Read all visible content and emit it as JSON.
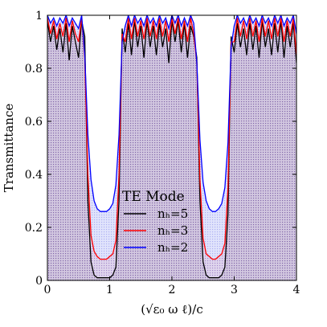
{
  "chart_data": {
    "type": "line",
    "xlabel": "(√ε₀ ω ℓ)/c",
    "ylabel": "Transmittance",
    "xlim": [
      0,
      4
    ],
    "ylim": [
      0,
      1
    ],
    "x_ticks": [
      0,
      1,
      2,
      3,
      4
    ],
    "y_ticks": [
      0,
      0.2,
      0.4,
      0.6,
      0.8,
      1
    ],
    "x_tick_labels": [
      "0",
      "1",
      "2",
      "3",
      "4"
    ],
    "y_tick_labels": [
      "0",
      "0.2",
      "0.4",
      "0.6",
      "0.8",
      "1"
    ],
    "legend_title": "TE Mode",
    "legend_position": "center-left",
    "fill_style": "shaded region under each curve",
    "series": [
      {
        "name": "nₕ=5",
        "color": "#000000",
        "points": [
          [
            0.0,
            0.98
          ],
          [
            0.05,
            0.9
          ],
          [
            0.1,
            0.96
          ],
          [
            0.15,
            0.87
          ],
          [
            0.2,
            0.95
          ],
          [
            0.25,
            0.86
          ],
          [
            0.3,
            0.97
          ],
          [
            0.35,
            0.83
          ],
          [
            0.4,
            0.96
          ],
          [
            0.45,
            0.9
          ],
          [
            0.5,
            0.84
          ],
          [
            0.55,
            0.98
          ],
          [
            0.6,
            0.92
          ],
          [
            0.65,
            0.3
          ],
          [
            0.7,
            0.07
          ],
          [
            0.75,
            0.02
          ],
          [
            0.8,
            0.01
          ],
          [
            0.85,
            0.01
          ],
          [
            0.9,
            0.01
          ],
          [
            0.95,
            0.01
          ],
          [
            1.0,
            0.01
          ],
          [
            1.05,
            0.02
          ],
          [
            1.1,
            0.05
          ],
          [
            1.15,
            0.3
          ],
          [
            1.2,
            0.95
          ],
          [
            1.25,
            0.86
          ],
          [
            1.3,
            0.97
          ],
          [
            1.35,
            0.85
          ],
          [
            1.4,
            0.98
          ],
          [
            1.45,
            0.88
          ],
          [
            1.5,
            0.96
          ],
          [
            1.55,
            0.84
          ],
          [
            1.6,
            0.98
          ],
          [
            1.65,
            0.88
          ],
          [
            1.7,
            0.96
          ],
          [
            1.75,
            0.85
          ],
          [
            1.8,
            0.97
          ],
          [
            1.85,
            0.88
          ],
          [
            1.9,
            0.95
          ],
          [
            1.95,
            0.82
          ],
          [
            2.0,
            0.98
          ],
          [
            2.05,
            0.9
          ],
          [
            2.1,
            0.98
          ],
          [
            2.15,
            0.86
          ],
          [
            2.2,
            0.97
          ],
          [
            2.25,
            0.84
          ],
          [
            2.3,
            0.96
          ],
          [
            2.35,
            0.92
          ],
          [
            2.4,
            0.84
          ],
          [
            2.45,
            0.3
          ],
          [
            2.5,
            0.07
          ],
          [
            2.55,
            0.02
          ],
          [
            2.6,
            0.01
          ],
          [
            2.65,
            0.01
          ],
          [
            2.7,
            0.01
          ],
          [
            2.75,
            0.01
          ],
          [
            2.8,
            0.02
          ],
          [
            2.85,
            0.05
          ],
          [
            2.9,
            0.25
          ],
          [
            2.95,
            0.92
          ],
          [
            3.0,
            0.86
          ],
          [
            3.05,
            0.97
          ],
          [
            3.1,
            0.88
          ],
          [
            3.15,
            0.95
          ],
          [
            3.2,
            0.85
          ],
          [
            3.25,
            0.97
          ],
          [
            3.3,
            0.87
          ],
          [
            3.35,
            0.96
          ],
          [
            3.4,
            0.84
          ],
          [
            3.45,
            0.98
          ],
          [
            3.5,
            0.88
          ],
          [
            3.55,
            0.95
          ],
          [
            3.6,
            0.85
          ],
          [
            3.65,
            0.97
          ],
          [
            3.7,
            0.86
          ],
          [
            3.75,
            0.98
          ],
          [
            3.8,
            0.84
          ],
          [
            3.85,
            0.96
          ],
          [
            3.9,
            0.88
          ],
          [
            3.95,
            0.97
          ],
          [
            4.0,
            0.82
          ]
        ]
      },
      {
        "name": "nₕ=3",
        "color": "#ff0000",
        "points": [
          [
            0.0,
            0.99
          ],
          [
            0.05,
            0.93
          ],
          [
            0.1,
            0.98
          ],
          [
            0.15,
            0.91
          ],
          [
            0.2,
            0.97
          ],
          [
            0.25,
            0.92
          ],
          [
            0.3,
            0.99
          ],
          [
            0.35,
            0.9
          ],
          [
            0.4,
            0.98
          ],
          [
            0.45,
            0.93
          ],
          [
            0.5,
            0.9
          ],
          [
            0.55,
            0.99
          ],
          [
            0.6,
            0.84
          ],
          [
            0.65,
            0.4
          ],
          [
            0.7,
            0.17
          ],
          [
            0.75,
            0.11
          ],
          [
            0.8,
            0.09
          ],
          [
            0.85,
            0.08
          ],
          [
            0.9,
            0.08
          ],
          [
            0.95,
            0.08
          ],
          [
            1.0,
            0.09
          ],
          [
            1.05,
            0.1
          ],
          [
            1.1,
            0.15
          ],
          [
            1.15,
            0.4
          ],
          [
            1.2,
            0.93
          ],
          [
            1.25,
            0.9
          ],
          [
            1.3,
            0.99
          ],
          [
            1.35,
            0.91
          ],
          [
            1.4,
            0.99
          ],
          [
            1.45,
            0.92
          ],
          [
            1.5,
            0.98
          ],
          [
            1.55,
            0.91
          ],
          [
            1.6,
            0.99
          ],
          [
            1.65,
            0.92
          ],
          [
            1.7,
            0.98
          ],
          [
            1.75,
            0.91
          ],
          [
            1.8,
            0.99
          ],
          [
            1.85,
            0.92
          ],
          [
            1.9,
            0.98
          ],
          [
            1.95,
            0.9
          ],
          [
            2.0,
            0.99
          ],
          [
            2.05,
            0.93
          ],
          [
            2.1,
            0.99
          ],
          [
            2.15,
            0.91
          ],
          [
            2.2,
            0.98
          ],
          [
            2.25,
            0.9
          ],
          [
            2.3,
            0.99
          ],
          [
            2.35,
            0.93
          ],
          [
            2.4,
            0.82
          ],
          [
            2.45,
            0.38
          ],
          [
            2.5,
            0.16
          ],
          [
            2.55,
            0.1
          ],
          [
            2.6,
            0.09
          ],
          [
            2.65,
            0.08
          ],
          [
            2.7,
            0.08
          ],
          [
            2.75,
            0.09
          ],
          [
            2.8,
            0.1
          ],
          [
            2.85,
            0.14
          ],
          [
            2.9,
            0.35
          ],
          [
            2.95,
            0.9
          ],
          [
            3.0,
            0.9
          ],
          [
            3.05,
            0.99
          ],
          [
            3.1,
            0.92
          ],
          [
            3.15,
            0.98
          ],
          [
            3.2,
            0.91
          ],
          [
            3.25,
            0.99
          ],
          [
            3.3,
            0.92
          ],
          [
            3.35,
            0.98
          ],
          [
            3.4,
            0.9
          ],
          [
            3.45,
            0.99
          ],
          [
            3.5,
            0.92
          ],
          [
            3.55,
            0.98
          ],
          [
            3.6,
            0.91
          ],
          [
            3.65,
            0.99
          ],
          [
            3.7,
            0.92
          ],
          [
            3.75,
            0.99
          ],
          [
            3.8,
            0.9
          ],
          [
            3.85,
            0.98
          ],
          [
            3.9,
            0.92
          ],
          [
            3.95,
            0.99
          ],
          [
            4.0,
            0.85
          ]
        ]
      },
      {
        "name": "nₕ=2",
        "color": "#0000ff",
        "points": [
          [
            0.0,
            1.0
          ],
          [
            0.05,
            0.97
          ],
          [
            0.1,
            0.99
          ],
          [
            0.15,
            0.96
          ],
          [
            0.2,
            0.99
          ],
          [
            0.25,
            0.97
          ],
          [
            0.3,
            1.0
          ],
          [
            0.35,
            0.96
          ],
          [
            0.4,
            0.99
          ],
          [
            0.45,
            0.97
          ],
          [
            0.5,
            0.95
          ],
          [
            0.55,
            1.0
          ],
          [
            0.6,
            0.85
          ],
          [
            0.65,
            0.55
          ],
          [
            0.7,
            0.38
          ],
          [
            0.75,
            0.3
          ],
          [
            0.8,
            0.27
          ],
          [
            0.85,
            0.26
          ],
          [
            0.9,
            0.26
          ],
          [
            0.95,
            0.26
          ],
          [
            1.0,
            0.27
          ],
          [
            1.05,
            0.29
          ],
          [
            1.1,
            0.36
          ],
          [
            1.15,
            0.55
          ],
          [
            1.2,
            0.9
          ],
          [
            1.25,
            0.96
          ],
          [
            1.3,
            1.0
          ],
          [
            1.35,
            0.96
          ],
          [
            1.4,
            1.0
          ],
          [
            1.45,
            0.97
          ],
          [
            1.5,
            0.99
          ],
          [
            1.55,
            0.96
          ],
          [
            1.6,
            1.0
          ],
          [
            1.65,
            0.97
          ],
          [
            1.7,
            0.99
          ],
          [
            1.75,
            0.96
          ],
          [
            1.8,
            1.0
          ],
          [
            1.85,
            0.97
          ],
          [
            1.9,
            0.99
          ],
          [
            1.95,
            0.95
          ],
          [
            2.0,
            1.0
          ],
          [
            2.05,
            0.97
          ],
          [
            2.1,
            1.0
          ],
          [
            2.15,
            0.96
          ],
          [
            2.2,
            0.99
          ],
          [
            2.25,
            0.96
          ],
          [
            2.3,
            1.0
          ],
          [
            2.35,
            0.97
          ],
          [
            2.4,
            0.82
          ],
          [
            2.45,
            0.53
          ],
          [
            2.5,
            0.37
          ],
          [
            2.55,
            0.3
          ],
          [
            2.6,
            0.27
          ],
          [
            2.65,
            0.26
          ],
          [
            2.7,
            0.26
          ],
          [
            2.75,
            0.27
          ],
          [
            2.8,
            0.29
          ],
          [
            2.85,
            0.35
          ],
          [
            2.9,
            0.52
          ],
          [
            2.95,
            0.88
          ],
          [
            3.0,
            0.96
          ],
          [
            3.05,
            1.0
          ],
          [
            3.1,
            0.97
          ],
          [
            3.15,
            0.99
          ],
          [
            3.2,
            0.96
          ],
          [
            3.25,
            1.0
          ],
          [
            3.3,
            0.97
          ],
          [
            3.35,
            0.99
          ],
          [
            3.4,
            0.96
          ],
          [
            3.45,
            1.0
          ],
          [
            3.5,
            0.97
          ],
          [
            3.55,
            0.99
          ],
          [
            3.6,
            0.96
          ],
          [
            3.65,
            1.0
          ],
          [
            3.7,
            0.97
          ],
          [
            3.75,
            1.0
          ],
          [
            3.8,
            0.96
          ],
          [
            3.85,
            0.99
          ],
          [
            3.9,
            0.97
          ],
          [
            3.95,
            1.0
          ],
          [
            4.0,
            0.93
          ]
        ]
      }
    ]
  }
}
